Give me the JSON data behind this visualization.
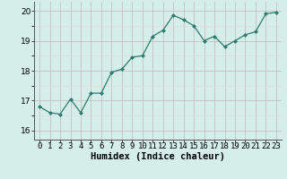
{
  "x": [
    0,
    1,
    2,
    3,
    4,
    5,
    6,
    7,
    8,
    9,
    10,
    11,
    12,
    13,
    14,
    15,
    16,
    17,
    18,
    19,
    20,
    21,
    22,
    23
  ],
  "y": [
    16.8,
    16.6,
    16.55,
    17.05,
    16.6,
    17.25,
    17.25,
    17.95,
    18.05,
    18.45,
    18.5,
    19.15,
    19.35,
    19.85,
    19.7,
    19.5,
    19.0,
    19.15,
    18.8,
    19.0,
    19.2,
    19.3,
    19.9,
    19.95
  ],
  "line_color": "#2d7b6e",
  "marker": "D",
  "marker_size": 2.0,
  "line_width": 0.9,
  "bg_color": "#d5eeea",
  "grid_color_major": "#c0b8b8",
  "grid_color_minor": "#e0d8d8",
  "xlabel": "Humidex (Indice chaleur)",
  "xlabel_fontsize": 7.5,
  "tick_fontsize": 6.5,
  "ylim": [
    15.7,
    20.3
  ],
  "xlim": [
    -0.5,
    23.5
  ],
  "yticks": [
    16,
    17,
    18,
    19,
    20
  ],
  "xtick_labels": [
    "0",
    "1",
    "2",
    "3",
    "4",
    "5",
    "6",
    "7",
    "8",
    "9",
    "10",
    "11",
    "12",
    "13",
    "14",
    "15",
    "16",
    "17",
    "18",
    "19",
    "20",
    "21",
    "22",
    "23"
  ]
}
